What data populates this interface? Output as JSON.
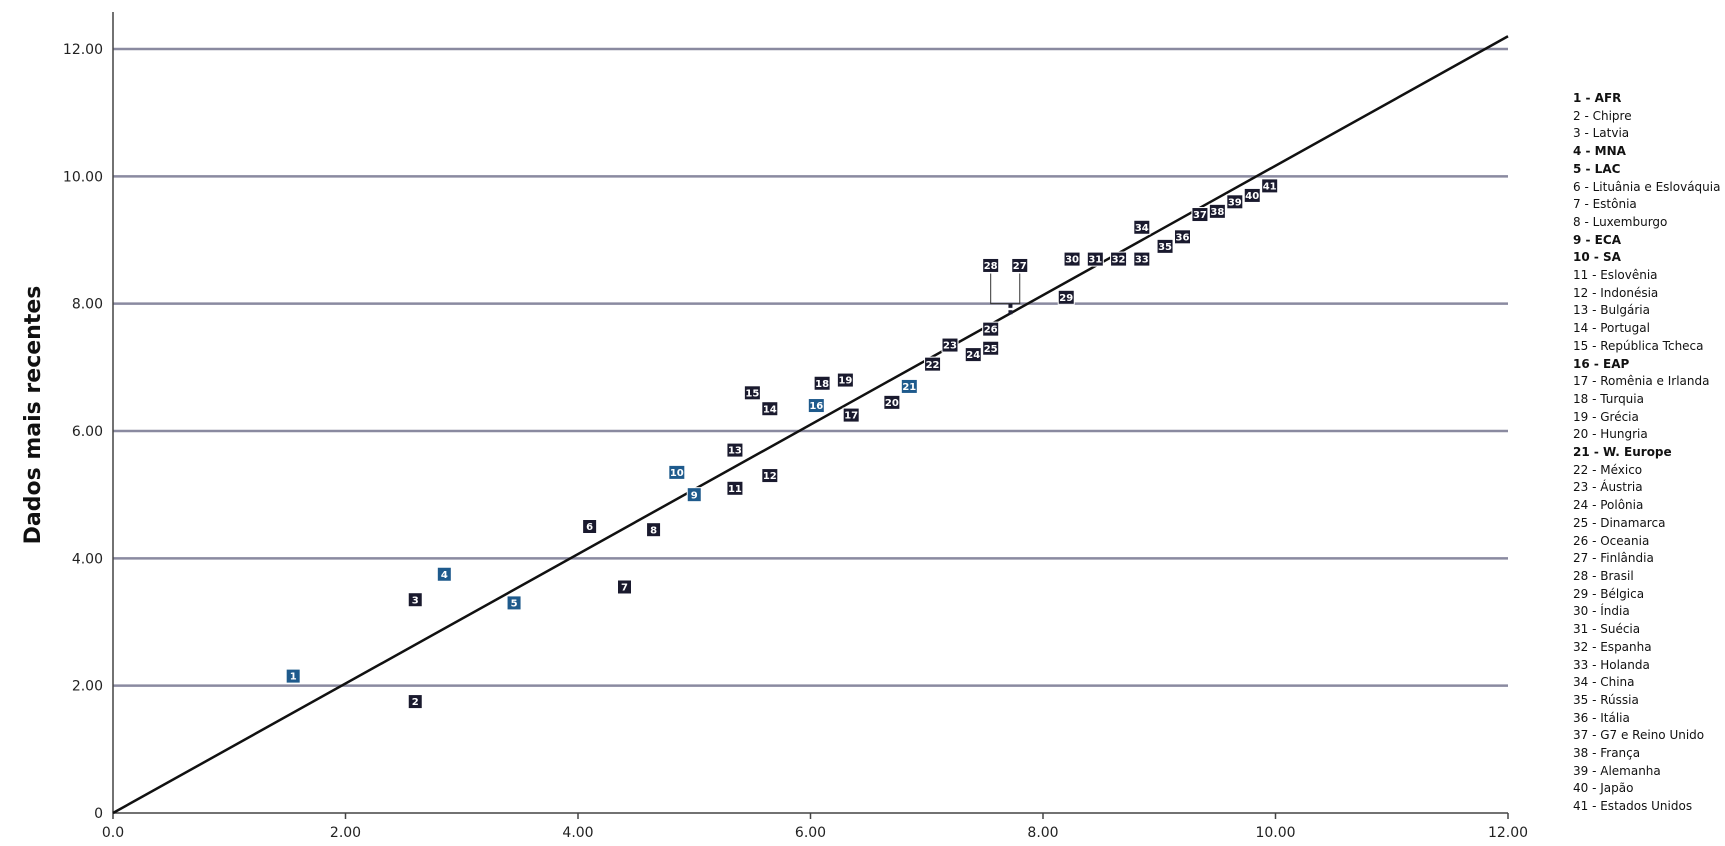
{
  "chart_data": {
    "type": "scatter",
    "title": "",
    "xlabel": "",
    "ylabel": "Dados mais recentes",
    "xlim": [
      0,
      12
    ],
    "ylim": [
      0,
      12
    ],
    "x_ticks": [
      "0.0",
      "2.00",
      "4.00",
      "6.00",
      "8.00",
      "10.00",
      "12.00"
    ],
    "y_ticks": [
      "0",
      "2.00",
      "4.00",
      "6.00",
      "8.00",
      "10.00",
      "12.00"
    ],
    "grid": "horizontal",
    "reference_line": {
      "from": [
        0,
        0
      ],
      "to": [
        12,
        12.2
      ]
    },
    "colors": {
      "country": "#1a1a2e",
      "region": "#1e5a8c"
    },
    "points": [
      {
        "id": "1",
        "x": 1.55,
        "y": 2.15,
        "kind": "region"
      },
      {
        "id": "2",
        "x": 2.6,
        "y": 1.75,
        "kind": "country"
      },
      {
        "id": "3",
        "x": 2.6,
        "y": 3.35,
        "kind": "country"
      },
      {
        "id": "4",
        "x": 2.85,
        "y": 3.75,
        "kind": "region"
      },
      {
        "id": "5",
        "x": 3.45,
        "y": 3.3,
        "kind": "region"
      },
      {
        "id": "6",
        "x": 4.1,
        "y": 4.5,
        "kind": "country"
      },
      {
        "id": "7",
        "x": 4.4,
        "y": 3.55,
        "kind": "country"
      },
      {
        "id": "8",
        "x": 4.65,
        "y": 4.45,
        "kind": "country"
      },
      {
        "id": "9",
        "x": 5.0,
        "y": 5.0,
        "kind": "region"
      },
      {
        "id": "10",
        "x": 4.85,
        "y": 5.35,
        "kind": "region"
      },
      {
        "id": "11",
        "x": 5.35,
        "y": 5.1,
        "kind": "country"
      },
      {
        "id": "12",
        "x": 5.65,
        "y": 5.3,
        "kind": "country"
      },
      {
        "id": "13",
        "x": 5.35,
        "y": 5.7,
        "kind": "country"
      },
      {
        "id": "14",
        "x": 5.65,
        "y": 6.35,
        "kind": "country"
      },
      {
        "id": "15",
        "x": 5.5,
        "y": 6.6,
        "kind": "country"
      },
      {
        "id": "16",
        "x": 6.05,
        "y": 6.4,
        "kind": "region"
      },
      {
        "id": "17",
        "x": 6.35,
        "y": 6.25,
        "kind": "country"
      },
      {
        "id": "18",
        "x": 6.1,
        "y": 6.75,
        "kind": "country"
      },
      {
        "id": "19",
        "x": 6.3,
        "y": 6.8,
        "kind": "country"
      },
      {
        "id": "20",
        "x": 6.7,
        "y": 6.45,
        "kind": "country"
      },
      {
        "id": "21",
        "x": 6.85,
        "y": 6.7,
        "kind": "region"
      },
      {
        "id": "22",
        "x": 7.05,
        "y": 7.05,
        "kind": "country"
      },
      {
        "id": "23",
        "x": 7.2,
        "y": 7.35,
        "kind": "country"
      },
      {
        "id": "24",
        "x": 7.4,
        "y": 7.2,
        "kind": "country"
      },
      {
        "id": "25",
        "x": 7.55,
        "y": 7.3,
        "kind": "country"
      },
      {
        "id": "26",
        "x": 7.55,
        "y": 7.6,
        "kind": "country"
      },
      {
        "id": "27",
        "x": 7.8,
        "y": 8.6,
        "kind": "country"
      },
      {
        "id": "28",
        "x": 7.55,
        "y": 8.6,
        "kind": "country"
      },
      {
        "id": "29",
        "x": 8.2,
        "y": 8.1,
        "kind": "country"
      },
      {
        "id": "30",
        "x": 8.25,
        "y": 8.7,
        "kind": "country"
      },
      {
        "id": "31",
        "x": 8.45,
        "y": 8.7,
        "kind": "country"
      },
      {
        "id": "32",
        "x": 8.65,
        "y": 8.7,
        "kind": "country"
      },
      {
        "id": "33",
        "x": 8.85,
        "y": 8.7,
        "kind": "country"
      },
      {
        "id": "34",
        "x": 8.85,
        "y": 9.2,
        "kind": "country"
      },
      {
        "id": "35",
        "x": 9.05,
        "y": 8.9,
        "kind": "country"
      },
      {
        "id": "36",
        "x": 9.2,
        "y": 9.05,
        "kind": "country"
      },
      {
        "id": "37",
        "x": 9.35,
        "y": 9.4,
        "kind": "country"
      },
      {
        "id": "38",
        "x": 9.5,
        "y": 9.45,
        "kind": "country"
      },
      {
        "id": "39",
        "x": 9.65,
        "y": 9.6,
        "kind": "country"
      },
      {
        "id": "40",
        "x": 9.8,
        "y": 9.7,
        "kind": "country"
      },
      {
        "id": "41",
        "x": 9.95,
        "y": 9.85,
        "kind": "country"
      }
    ],
    "legend": {
      "placement": "right",
      "items": [
        {
          "text": "1 - AFR",
          "bold": true
        },
        {
          "text": "2 - Chipre",
          "bold": false
        },
        {
          "text": "3 - Latvia",
          "bold": false
        },
        {
          "text": "4 - MNA",
          "bold": true
        },
        {
          "text": "5 - LAC",
          "bold": true
        },
        {
          "text": "6 - Lituânia e Eslováquia",
          "bold": false
        },
        {
          "text": "7 - Estônia",
          "bold": false
        },
        {
          "text": "8 - Luxemburgo",
          "bold": false
        },
        {
          "text": "9 - ECA",
          "bold": true
        },
        {
          "text": "10 - SA",
          "bold": true
        },
        {
          "text": "11 - Eslovênia",
          "bold": false
        },
        {
          "text": "12 - Indonésia",
          "bold": false
        },
        {
          "text": "13 - Bulgária",
          "bold": false
        },
        {
          "text": "14 - Portugal",
          "bold": false
        },
        {
          "text": "15 - República Tcheca",
          "bold": false
        },
        {
          "text": "16 - EAP",
          "bold": true
        },
        {
          "text": "17 - Romênia e Irlanda",
          "bold": false
        },
        {
          "text": "18 - Turquia",
          "bold": false
        },
        {
          "text": "19 - Grécia",
          "bold": false
        },
        {
          "text": "20 - Hungria",
          "bold": false
        },
        {
          "text": "21 - W. Europe",
          "bold": true
        },
        {
          "text": "22 - México",
          "bold": false
        },
        {
          "text": "23 - Áustria",
          "bold": false
        },
        {
          "text": "24 - Polônia",
          "bold": false
        },
        {
          "text": "25 - Dinamarca",
          "bold": false
        },
        {
          "text": "26 - Oceania",
          "bold": false
        },
        {
          "text": "27 - Finlândia",
          "bold": false
        },
        {
          "text": "28 - Brasil",
          "bold": false
        },
        {
          "text": "29 - Bélgica",
          "bold": false
        },
        {
          "text": "30 - Índia",
          "bold": false
        },
        {
          "text": "31 - Suécia",
          "bold": false
        },
        {
          "text": "32 - Espanha",
          "bold": false
        },
        {
          "text": "33 - Holanda",
          "bold": false
        },
        {
          "text": "34 - China",
          "bold": false
        },
        {
          "text": "35 - Rússia",
          "bold": false
        },
        {
          "text": "36 - Itália",
          "bold": false
        },
        {
          "text": "37 - G7 e Reino Unido",
          "bold": false
        },
        {
          "text": "38 - França",
          "bold": false
        },
        {
          "text": "39 - Alemanha",
          "bold": false
        },
        {
          "text": "40 - Japão",
          "bold": false
        },
        {
          "text": "41 - Estados Unidos",
          "bold": false
        }
      ]
    }
  }
}
